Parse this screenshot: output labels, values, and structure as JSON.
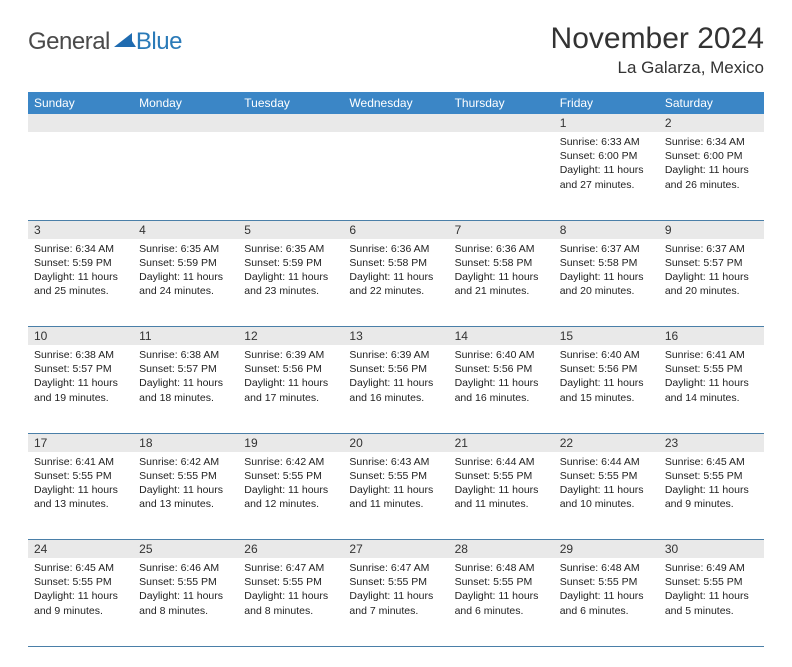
{
  "logo": {
    "text1": "General",
    "text2": "Blue"
  },
  "title": "November 2024",
  "subtitle": "La Galarza, Mexico",
  "colors": {
    "header_bg": "#3b86c6",
    "header_text": "#ffffff",
    "daynum_bg": "#e9e9e9",
    "rule": "#4a7fa8",
    "logo_gray": "#4a4a4a",
    "logo_blue": "#2a7ab8"
  },
  "weekdays": [
    "Sunday",
    "Monday",
    "Tuesday",
    "Wednesday",
    "Thursday",
    "Friday",
    "Saturday"
  ],
  "weeks": [
    [
      null,
      null,
      null,
      null,
      null,
      {
        "n": "1",
        "sunrise": "6:33 AM",
        "sunset": "6:00 PM",
        "day_h": "11",
        "day_m": "27"
      },
      {
        "n": "2",
        "sunrise": "6:34 AM",
        "sunset": "6:00 PM",
        "day_h": "11",
        "day_m": "26"
      }
    ],
    [
      {
        "n": "3",
        "sunrise": "6:34 AM",
        "sunset": "5:59 PM",
        "day_h": "11",
        "day_m": "25"
      },
      {
        "n": "4",
        "sunrise": "6:35 AM",
        "sunset": "5:59 PM",
        "day_h": "11",
        "day_m": "24"
      },
      {
        "n": "5",
        "sunrise": "6:35 AM",
        "sunset": "5:59 PM",
        "day_h": "11",
        "day_m": "23"
      },
      {
        "n": "6",
        "sunrise": "6:36 AM",
        "sunset": "5:58 PM",
        "day_h": "11",
        "day_m": "22"
      },
      {
        "n": "7",
        "sunrise": "6:36 AM",
        "sunset": "5:58 PM",
        "day_h": "11",
        "day_m": "21"
      },
      {
        "n": "8",
        "sunrise": "6:37 AM",
        "sunset": "5:58 PM",
        "day_h": "11",
        "day_m": "20"
      },
      {
        "n": "9",
        "sunrise": "6:37 AM",
        "sunset": "5:57 PM",
        "day_h": "11",
        "day_m": "20"
      }
    ],
    [
      {
        "n": "10",
        "sunrise": "6:38 AM",
        "sunset": "5:57 PM",
        "day_h": "11",
        "day_m": "19"
      },
      {
        "n": "11",
        "sunrise": "6:38 AM",
        "sunset": "5:57 PM",
        "day_h": "11",
        "day_m": "18"
      },
      {
        "n": "12",
        "sunrise": "6:39 AM",
        "sunset": "5:56 PM",
        "day_h": "11",
        "day_m": "17"
      },
      {
        "n": "13",
        "sunrise": "6:39 AM",
        "sunset": "5:56 PM",
        "day_h": "11",
        "day_m": "16"
      },
      {
        "n": "14",
        "sunrise": "6:40 AM",
        "sunset": "5:56 PM",
        "day_h": "11",
        "day_m": "16"
      },
      {
        "n": "15",
        "sunrise": "6:40 AM",
        "sunset": "5:56 PM",
        "day_h": "11",
        "day_m": "15"
      },
      {
        "n": "16",
        "sunrise": "6:41 AM",
        "sunset": "5:55 PM",
        "day_h": "11",
        "day_m": "14"
      }
    ],
    [
      {
        "n": "17",
        "sunrise": "6:41 AM",
        "sunset": "5:55 PM",
        "day_h": "11",
        "day_m": "13"
      },
      {
        "n": "18",
        "sunrise": "6:42 AM",
        "sunset": "5:55 PM",
        "day_h": "11",
        "day_m": "13"
      },
      {
        "n": "19",
        "sunrise": "6:42 AM",
        "sunset": "5:55 PM",
        "day_h": "11",
        "day_m": "12"
      },
      {
        "n": "20",
        "sunrise": "6:43 AM",
        "sunset": "5:55 PM",
        "day_h": "11",
        "day_m": "11"
      },
      {
        "n": "21",
        "sunrise": "6:44 AM",
        "sunset": "5:55 PM",
        "day_h": "11",
        "day_m": "11"
      },
      {
        "n": "22",
        "sunrise": "6:44 AM",
        "sunset": "5:55 PM",
        "day_h": "11",
        "day_m": "10"
      },
      {
        "n": "23",
        "sunrise": "6:45 AM",
        "sunset": "5:55 PM",
        "day_h": "11",
        "day_m": "9"
      }
    ],
    [
      {
        "n": "24",
        "sunrise": "6:45 AM",
        "sunset": "5:55 PM",
        "day_h": "11",
        "day_m": "9"
      },
      {
        "n": "25",
        "sunrise": "6:46 AM",
        "sunset": "5:55 PM",
        "day_h": "11",
        "day_m": "8"
      },
      {
        "n": "26",
        "sunrise": "6:47 AM",
        "sunset": "5:55 PM",
        "day_h": "11",
        "day_m": "8"
      },
      {
        "n": "27",
        "sunrise": "6:47 AM",
        "sunset": "5:55 PM",
        "day_h": "11",
        "day_m": "7"
      },
      {
        "n": "28",
        "sunrise": "6:48 AM",
        "sunset": "5:55 PM",
        "day_h": "11",
        "day_m": "6"
      },
      {
        "n": "29",
        "sunrise": "6:48 AM",
        "sunset": "5:55 PM",
        "day_h": "11",
        "day_m": "6"
      },
      {
        "n": "30",
        "sunrise": "6:49 AM",
        "sunset": "5:55 PM",
        "day_h": "11",
        "day_m": "5"
      }
    ]
  ],
  "labels": {
    "sunrise": "Sunrise:",
    "sunset": "Sunset:",
    "daylight_prefix": "Daylight:",
    "hours_word": "hours",
    "and_word": "and",
    "minutes_word": "minutes."
  }
}
